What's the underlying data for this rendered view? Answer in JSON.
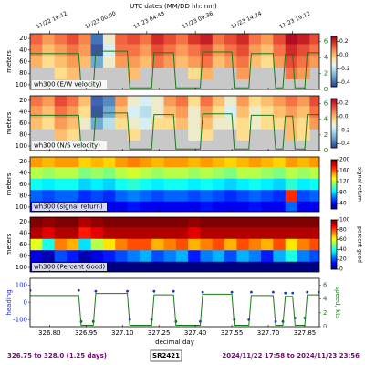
{
  "top_axis": {
    "label": "UTC dates (MM/DD hh:mm)",
    "xlim": [
      326.72,
      327.91
    ],
    "ticks": [
      {
        "value": 326.8,
        "label": "11/22 19:12"
      },
      {
        "value": 327.0,
        "label": "11/23 00:00"
      },
      {
        "value": 327.2,
        "label": "11/23 04:48"
      },
      {
        "value": 327.4,
        "label": "11/23 09:36"
      },
      {
        "value": 327.6,
        "label": "11/23 14:24"
      },
      {
        "value": 327.8,
        "label": "11/23 19:12"
      }
    ]
  },
  "chart_data": [
    {
      "type": "heatmap",
      "label": "wh300 (E/W velocity)",
      "ylabel": "meters",
      "xlim": [
        326.72,
        327.91
      ],
      "ylim": [
        12,
        108
      ],
      "yticks": [
        20,
        40,
        60,
        80,
        100
      ],
      "x": [
        326.745,
        326.795,
        326.845,
        326.895,
        326.945,
        326.995,
        327.045,
        327.095,
        327.145,
        327.195,
        327.245,
        327.295,
        327.345,
        327.395,
        327.445,
        327.495,
        327.545,
        327.595,
        327.645,
        327.695,
        327.745,
        327.795,
        327.845,
        327.895
      ],
      "depths": [
        20,
        40,
        60,
        80,
        100
      ],
      "values": [
        [
          0.12,
          0.05,
          0.1,
          0.15,
          0.08,
          -0.38,
          -0.1,
          0.12,
          0.15,
          0.1,
          0.2,
          0.15,
          0.1,
          0.18,
          0.22,
          0.1,
          0.15,
          0.2,
          0.1,
          0.05,
          0.15,
          0.25,
          0.22,
          0.15
        ],
        [
          0.08,
          0.0,
          0.05,
          0.1,
          0.05,
          -0.42,
          -0.15,
          0.1,
          0.1,
          0.05,
          0.15,
          0.1,
          0.05,
          0.1,
          0.15,
          0.05,
          0.1,
          0.15,
          0.05,
          0.0,
          0.1,
          0.2,
          0.15,
          0.1
        ],
        [
          0.02,
          -0.05,
          0.0,
          0.05,
          0.0,
          -0.3,
          -0.1,
          0.05,
          0.05,
          0.0,
          0.1,
          0.05,
          0.0,
          0.05,
          0.1,
          0.0,
          0.05,
          0.1,
          0.0,
          -0.05,
          0.05,
          0.15,
          0.1,
          0.05
        ],
        [
          null,
          null,
          -0.05,
          0.0,
          null,
          null,
          null,
          null,
          0.0,
          null,
          null,
          null,
          null,
          -0.05,
          0.02,
          null,
          null,
          0.05,
          null,
          null,
          null,
          0.1,
          0.05,
          null
        ],
        [
          null,
          null,
          null,
          null,
          null,
          null,
          null,
          null,
          null,
          null,
          null,
          null,
          null,
          null,
          null,
          null,
          null,
          null,
          null,
          null,
          null,
          null,
          null,
          null
        ]
      ],
      "colormap": [
        "#313695",
        "#4575b4",
        "#74add1",
        "#abd9e9",
        "#e0f3f8",
        "#fee090",
        "#fdae61",
        "#f46d43",
        "#d73027",
        "#a50026"
      ],
      "clim": [
        -0.46,
        0.27
      ],
      "cticks": [
        0.2,
        {
          "value": 0,
          "label": "0.0"
        },
        -0.2,
        -0.4
      ],
      "missing_color": "#c8c8c8",
      "overlay": {
        "color": "#1a7a1a",
        "y2lim": [
          0,
          7
        ],
        "y2ticks": [
          0,
          2,
          4,
          6
        ],
        "x": [
          326.72,
          326.92,
          326.93,
          326.98,
          326.99,
          327.12,
          327.13,
          327.22,
          327.23,
          327.31,
          327.32,
          327.42,
          327.43,
          327.55,
          327.56,
          327.62,
          327.63,
          327.72,
          327.73,
          327.76,
          327.77,
          327.8,
          327.81,
          327.85,
          327.86,
          327.91
        ],
        "values": [
          4.5,
          4.5,
          0.2,
          0.2,
          4.8,
          4.8,
          0.2,
          0.2,
          4.6,
          4.6,
          0.2,
          0.2,
          4.7,
          4.7,
          0.2,
          0.2,
          4.5,
          4.5,
          0.2,
          0.2,
          4.4,
          4.4,
          0.2,
          0.2,
          4.6,
          4.6
        ]
      }
    },
    {
      "type": "heatmap",
      "label": "wh300 (N/S velocity)",
      "ylabel": "meters",
      "xlim": [
        326.72,
        327.91
      ],
      "ylim": [
        12,
        108
      ],
      "yticks": [
        20,
        40,
        60,
        80,
        100
      ],
      "x": [
        326.745,
        326.795,
        326.845,
        326.895,
        326.945,
        326.995,
        327.045,
        327.095,
        327.145,
        327.195,
        327.245,
        327.295,
        327.345,
        327.395,
        327.445,
        327.495,
        327.545,
        327.595,
        327.645,
        327.695,
        327.745,
        327.795,
        327.845,
        327.895
      ],
      "depths": [
        20,
        40,
        60,
        80,
        100
      ],
      "values": [
        [
          0.1,
          0.05,
          0.15,
          0.1,
          0.0,
          -0.4,
          -0.35,
          0.05,
          -0.1,
          -0.15,
          -0.1,
          0.05,
          0.1,
          -0.05,
          0.1,
          0.0,
          -0.1,
          0.05,
          -0.05,
          0.0,
          0.05,
          0.1,
          0.05,
          0.15
        ],
        [
          0.05,
          0.0,
          0.1,
          0.05,
          -0.05,
          -0.42,
          -0.3,
          0.0,
          -0.15,
          -0.2,
          -0.1,
          0.0,
          0.05,
          -0.1,
          0.05,
          -0.05,
          -0.15,
          0.0,
          -0.1,
          -0.05,
          0.0,
          0.05,
          0.0,
          0.1
        ],
        [
          0.0,
          -0.05,
          0.05,
          0.0,
          -0.1,
          -0.3,
          -0.2,
          -0.05,
          -0.1,
          -0.15,
          -0.05,
          -0.05,
          0.0,
          -0.1,
          0.0,
          -0.1,
          -0.1,
          -0.05,
          -0.1,
          -0.05,
          -0.05,
          0.0,
          -0.05,
          0.05
        ],
        [
          null,
          null,
          0.0,
          -0.05,
          null,
          null,
          null,
          null,
          -0.05,
          null,
          null,
          null,
          null,
          -0.1,
          -0.05,
          null,
          null,
          -0.05,
          null,
          null,
          null,
          0.0,
          -0.05,
          null
        ],
        [
          null,
          null,
          null,
          null,
          null,
          null,
          null,
          null,
          null,
          null,
          null,
          null,
          null,
          null,
          null,
          null,
          null,
          null,
          null,
          null,
          null,
          null,
          null,
          null
        ]
      ],
      "colormap": [
        "#313695",
        "#4575b4",
        "#74add1",
        "#abd9e9",
        "#e0f3f8",
        "#fee090",
        "#fdae61",
        "#f46d43",
        "#d73027",
        "#a50026"
      ],
      "clim": [
        -0.46,
        0.27
      ],
      "cticks": [
        0.2,
        {
          "value": 0,
          "label": "0.0"
        },
        -0.2,
        -0.4
      ],
      "missing_color": "#c8c8c8",
      "overlay": {
        "color": "#1a7a1a",
        "y2lim": [
          0,
          7
        ],
        "y2ticks": [
          0,
          2,
          4,
          6
        ],
        "x": [
          326.72,
          326.92,
          326.93,
          326.98,
          326.99,
          327.12,
          327.13,
          327.22,
          327.23,
          327.31,
          327.32,
          327.42,
          327.43,
          327.55,
          327.56,
          327.62,
          327.63,
          327.72,
          327.73,
          327.76,
          327.77,
          327.8,
          327.81,
          327.85,
          327.86,
          327.91
        ],
        "values": [
          4.5,
          4.5,
          0.2,
          0.2,
          4.8,
          4.8,
          0.2,
          0.2,
          4.6,
          4.6,
          0.2,
          0.2,
          4.7,
          4.7,
          0.2,
          0.2,
          4.5,
          4.5,
          0.2,
          0.2,
          4.4,
          4.4,
          0.2,
          0.2,
          4.6,
          4.6
        ]
      }
    },
    {
      "type": "heatmap",
      "label": "wh300 (signal return)",
      "ylabel": "meters",
      "clabel": "signal return",
      "xlim": [
        326.72,
        327.91
      ],
      "ylim": [
        12,
        108
      ],
      "yticks": [
        20,
        40,
        60,
        80,
        100
      ],
      "x": [
        326.745,
        326.795,
        326.845,
        326.895,
        326.945,
        326.995,
        327.045,
        327.095,
        327.145,
        327.195,
        327.245,
        327.295,
        327.345,
        327.395,
        327.445,
        327.495,
        327.545,
        327.595,
        327.645,
        327.695,
        327.745,
        327.795,
        327.845,
        327.895
      ],
      "depths": [
        20,
        40,
        60,
        80,
        100
      ],
      "values": [
        [
          150,
          145,
          150,
          150,
          140,
          145,
          140,
          150,
          155,
          150,
          145,
          150,
          150,
          145,
          150,
          145,
          140,
          145,
          150,
          145,
          140,
          150,
          145,
          150
        ],
        [
          120,
          115,
          120,
          120,
          110,
          115,
          110,
          120,
          125,
          120,
          115,
          120,
          120,
          115,
          120,
          115,
          110,
          120,
          120,
          115,
          110,
          120,
          115,
          120
        ],
        [
          90,
          85,
          90,
          90,
          80,
          85,
          80,
          90,
          95,
          90,
          85,
          90,
          90,
          85,
          90,
          85,
          80,
          85,
          90,
          85,
          80,
          95,
          85,
          90
        ],
        [
          60,
          55,
          60,
          60,
          50,
          55,
          50,
          60,
          65,
          60,
          55,
          60,
          60,
          55,
          60,
          55,
          50,
          55,
          60,
          55,
          50,
          170,
          55,
          60
        ],
        [
          40,
          40,
          40,
          40,
          40,
          40,
          40,
          40,
          45,
          40,
          40,
          40,
          40,
          40,
          45,
          40,
          40,
          40,
          45,
          40,
          40,
          60,
          40,
          40
        ]
      ],
      "colormap": [
        "#00007f",
        "#0000ff",
        "#007fff",
        "#00ffff",
        "#7fff7f",
        "#ffff00",
        "#ff7f00",
        "#ff0000",
        "#7f0000"
      ],
      "clim": [
        20,
        200
      ],
      "cticks": [
        200,
        160,
        120,
        80,
        40
      ]
    },
    {
      "type": "heatmap",
      "label": "wh300 (Percent Good)",
      "ylabel": "meters",
      "clabel": "percent good",
      "xlim": [
        326.72,
        327.91
      ],
      "ylim": [
        12,
        108
      ],
      "yticks": [
        20,
        40,
        60,
        80,
        100
      ],
      "x": [
        326.745,
        326.795,
        326.845,
        326.895,
        326.945,
        326.995,
        327.045,
        327.095,
        327.145,
        327.195,
        327.245,
        327.295,
        327.345,
        327.395,
        327.445,
        327.495,
        327.545,
        327.595,
        327.645,
        327.695,
        327.745,
        327.795,
        327.845,
        327.895
      ],
      "depths": [
        20,
        40,
        60,
        80,
        100
      ],
      "values": [
        [
          100,
          98,
          100,
          100,
          95,
          98,
          100,
          100,
          100,
          100,
          100,
          100,
          100,
          98,
          100,
          100,
          100,
          100,
          100,
          100,
          100,
          100,
          100,
          100
        ],
        [
          95,
          90,
          95,
          95,
          85,
          90,
          95,
          95,
          95,
          95,
          95,
          95,
          95,
          90,
          95,
          95,
          95,
          95,
          95,
          95,
          95,
          95,
          95,
          95
        ],
        [
          60,
          40,
          75,
          70,
          35,
          55,
          65,
          75,
          80,
          80,
          70,
          75,
          80,
          70,
          75,
          80,
          70,
          80,
          75,
          70,
          80,
          65,
          75,
          80
        ],
        [
          10,
          5,
          20,
          15,
          5,
          10,
          15,
          20,
          25,
          30,
          20,
          25,
          30,
          15,
          25,
          30,
          20,
          30,
          25,
          15,
          30,
          40,
          25,
          20
        ],
        [
          0,
          0,
          0,
          0,
          0,
          0,
          0,
          0,
          0,
          0,
          0,
          0,
          0,
          0,
          0,
          0,
          0,
          0,
          0,
          0,
          0,
          0,
          0,
          0
        ]
      ],
      "colormap": [
        "#00007f",
        "#0000ff",
        "#007fff",
        "#00ffff",
        "#7fff7f",
        "#ffff00",
        "#ff7f00",
        "#ff0000",
        "#7f0000"
      ],
      "clim": [
        0,
        100
      ],
      "cticks": [
        100,
        80,
        60,
        40,
        20,
        0
      ]
    },
    {
      "type": "timeseries",
      "ylabel": "heading",
      "y2label": "speed, kts",
      "xlabel": "decimal day",
      "xlim": [
        326.72,
        327.91
      ],
      "xticks": [
        {
          "value": 326.8,
          "label": "326.80"
        },
        326.95,
        {
          "value": 327.1,
          "label": "327.10"
        },
        327.25,
        {
          "value": 327.4,
          "label": "327.40"
        },
        327.55,
        {
          "value": 327.7,
          "label": "327.70"
        },
        327.85
      ],
      "ylim": [
        -140,
        140
      ],
      "yticks": [
        100,
        0,
        -100
      ],
      "y2lim": [
        0,
        7
      ],
      "y2ticks": [
        0,
        2,
        4,
        6
      ],
      "x": [
        326.72,
        326.92,
        326.93,
        326.98,
        326.99,
        327.12,
        327.13,
        327.22,
        327.23,
        327.31,
        327.32,
        327.42,
        327.43,
        327.55,
        327.56,
        327.62,
        327.63,
        327.72,
        327.73,
        327.76,
        327.77,
        327.8,
        327.81,
        327.85,
        327.86,
        327.91
      ],
      "series": [
        {
          "color": "#1f2fd0",
          "marker": "dot",
          "values": [
            70,
            70,
            -110,
            -110,
            65,
            65,
            -100,
            -100,
            65,
            65,
            -110,
            -110,
            60,
            60,
            -100,
            -100,
            60,
            60,
            -110,
            -110,
            55,
            55,
            -90,
            -90,
            60,
            60
          ]
        },
        {
          "color": "#1a7a1a",
          "axis": "y2",
          "values": [
            4.5,
            4.5,
            0.2,
            0.2,
            4.8,
            4.8,
            0.2,
            0.2,
            4.6,
            4.6,
            0.2,
            0.2,
            4.7,
            4.7,
            0.2,
            0.2,
            4.5,
            4.5,
            0.2,
            0.2,
            4.4,
            4.4,
            0.2,
            0.2,
            4.6,
            4.6
          ]
        }
      ]
    }
  ],
  "footer": {
    "left": "326.75 to 328.0 (1.25 days)",
    "center": "SR2421",
    "right": "2024/11/22 17:58 to 2024/11/23 23:56"
  }
}
